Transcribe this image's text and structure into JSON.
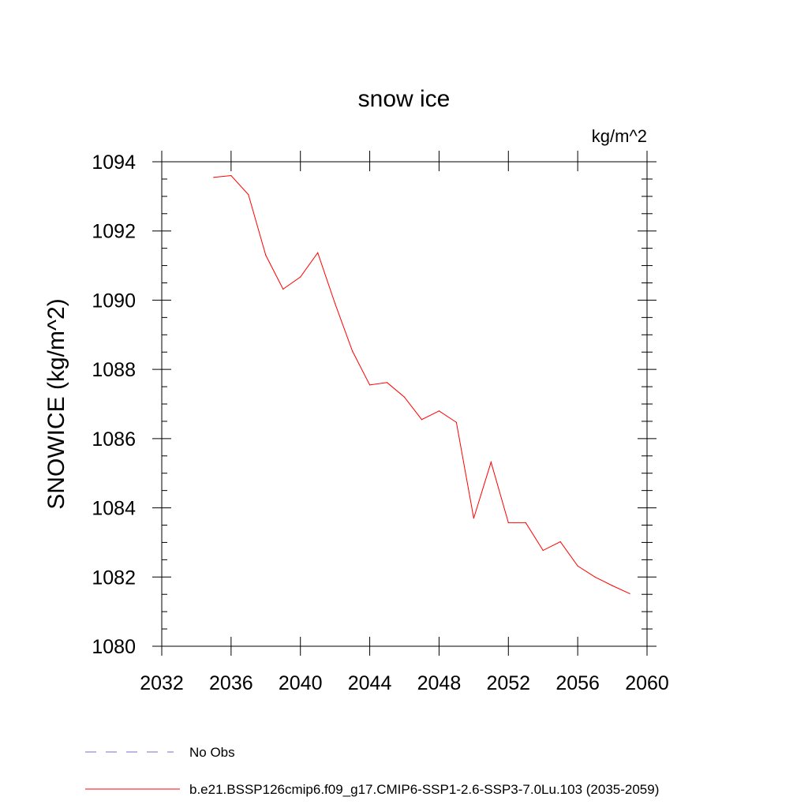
{
  "chart_data": {
    "type": "line",
    "title": "snow ice",
    "units_label": "kg/m^2",
    "ylabel": "SNOWICE  (kg/m^2)",
    "xlabel": "",
    "xlim": [
      2032,
      2060
    ],
    "ylim": [
      1080,
      1094
    ],
    "xticks": [
      2032,
      2036,
      2040,
      2044,
      2048,
      2052,
      2056,
      2060
    ],
    "yticks": [
      1080,
      1082,
      1084,
      1086,
      1088,
      1090,
      1092,
      1094
    ],
    "grid": false,
    "series": [
      {
        "name": "b.e21.BSSP126cmip6.f09_g17.CMIP6-SSP1-2.6-SSP3-7.0Lu.103 (2035-2059)",
        "color": "#ff0000",
        "x": [
          2035,
          2036,
          2037,
          2038,
          2039,
          2040,
          2041,
          2042,
          2043,
          2044,
          2045,
          2046,
          2047,
          2048,
          2049,
          2050,
          2051,
          2052,
          2053,
          2054,
          2055,
          2056,
          2057,
          2058,
          2059
        ],
        "values": [
          1093.55,
          1093.6,
          1093.05,
          1091.3,
          1090.32,
          1090.67,
          1091.37,
          1089.9,
          1088.53,
          1087.55,
          1087.62,
          1087.2,
          1086.55,
          1086.8,
          1086.47,
          1083.7,
          1085.32,
          1083.57,
          1083.57,
          1082.77,
          1083.02,
          1082.32,
          1082.0,
          1081.75,
          1081.52
        ]
      }
    ],
    "legend": [
      {
        "label": "No Obs",
        "style": "dashed",
        "color": "#7b6fc4"
      },
      {
        "label": "b.e21.BSSP126cmip6.f09_g17.CMIP6-SSP1-2.6-SSP3-7.0Lu.103 (2035-2059)",
        "style": "solid",
        "color": "#ff0000"
      }
    ],
    "legend_position": "bottom-left"
  }
}
